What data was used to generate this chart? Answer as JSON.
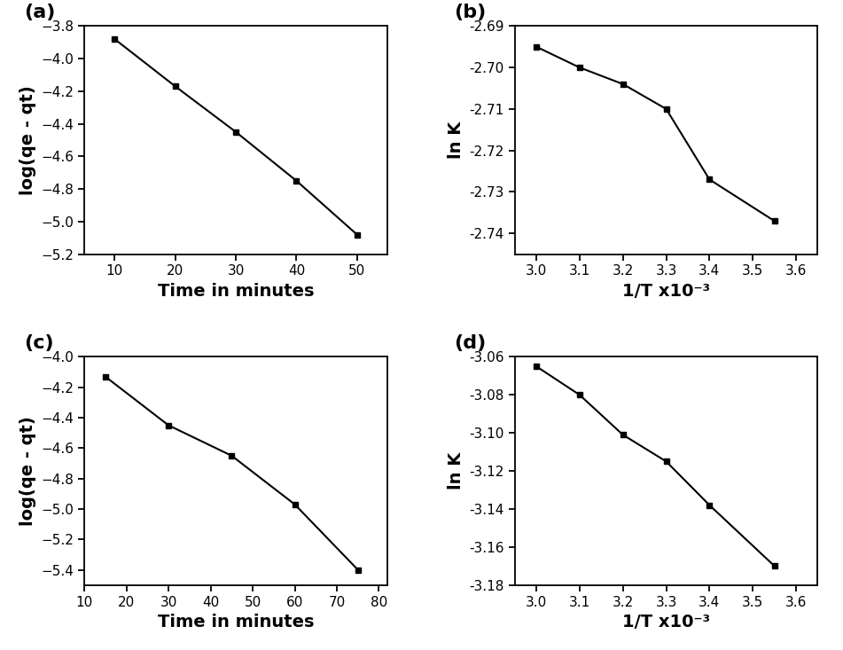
{
  "panel_a": {
    "x": [
      10,
      20,
      30,
      40,
      50
    ],
    "y": [
      -3.88,
      -4.17,
      -4.45,
      -4.75,
      -5.08
    ],
    "xlabel": "Time in minutes",
    "ylabel": "log(qe - qt)",
    "xlim": [
      5,
      55
    ],
    "ylim": [
      -5.2,
      -3.8
    ],
    "xticks": [
      10,
      20,
      30,
      40,
      50
    ],
    "yticks": [
      -5.2,
      -5.0,
      -4.8,
      -4.6,
      -4.4,
      -4.2,
      -4.0,
      -3.8
    ],
    "label": "(a)"
  },
  "panel_b": {
    "x": [
      3.0,
      3.1,
      3.2,
      3.3,
      3.4,
      3.55
    ],
    "y": [
      -2.695,
      -2.7,
      -2.704,
      -2.71,
      -2.727,
      -2.737
    ],
    "xlabel": "1/T x10⁻³",
    "ylabel": "ln K",
    "xlim": [
      2.95,
      3.65
    ],
    "ylim": [
      -2.745,
      -2.69
    ],
    "xticks": [
      3.0,
      3.1,
      3.2,
      3.3,
      3.4,
      3.5,
      3.6
    ],
    "yticks": [
      -2.74,
      -2.73,
      -2.72,
      -2.71,
      -2.7,
      -2.69
    ],
    "label": "(b)"
  },
  "panel_c": {
    "x": [
      15,
      30,
      45,
      60,
      75
    ],
    "y": [
      -4.13,
      -4.45,
      -4.65,
      -4.97,
      -5.4
    ],
    "xlabel": "Time in minutes",
    "ylabel": "log(qe - qt)",
    "xlim": [
      10,
      82
    ],
    "ylim": [
      -5.5,
      -4.0
    ],
    "xticks": [
      10,
      20,
      30,
      40,
      50,
      60,
      70,
      80
    ],
    "yticks": [
      -5.4,
      -5.2,
      -5.0,
      -4.8,
      -4.6,
      -4.4,
      -4.2,
      -4.0
    ],
    "label": "(c)"
  },
  "panel_d": {
    "x": [
      3.0,
      3.1,
      3.2,
      3.3,
      3.4,
      3.55
    ],
    "y": [
      -3.065,
      -3.08,
      -3.101,
      -3.115,
      -3.138,
      -3.17
    ],
    "xlabel": "1/T x10⁻³",
    "ylabel": "ln K",
    "xlim": [
      2.95,
      3.65
    ],
    "ylim": [
      -3.18,
      -3.06
    ],
    "xticks": [
      3.0,
      3.1,
      3.2,
      3.3,
      3.4,
      3.5,
      3.6
    ],
    "yticks": [
      -3.18,
      -3.16,
      -3.14,
      -3.12,
      -3.1,
      -3.08,
      -3.06
    ],
    "label": "(d)"
  },
  "line_color": "#000000",
  "marker": "s",
  "marker_size": 5,
  "linewidth": 1.5,
  "label_font_size": 14,
  "tick_font_size": 11,
  "panel_label_font_size": 16
}
